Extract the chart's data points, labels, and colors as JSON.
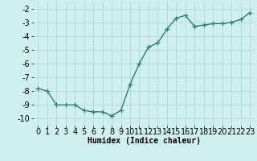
{
  "x": [
    0,
    1,
    2,
    3,
    4,
    5,
    6,
    7,
    8,
    9,
    10,
    11,
    12,
    13,
    14,
    15,
    16,
    17,
    18,
    19,
    20,
    21,
    22,
    23
  ],
  "y": [
    -7.8,
    -8.0,
    -9.0,
    -9.0,
    -9.0,
    -9.4,
    -9.5,
    -9.5,
    -9.8,
    -9.4,
    -7.5,
    -6.0,
    -4.8,
    -4.5,
    -3.5,
    -2.7,
    -2.5,
    -3.3,
    -3.2,
    -3.1,
    -3.1,
    -3.0,
    -2.8,
    -2.3
  ],
  "line_color": "#2e7d6e",
  "marker": "+",
  "markersize": 4,
  "linewidth": 1.0,
  "background_color": "#cff0ec",
  "grid_color": "#b0d8d2",
  "xlabel": "Humidex (Indice chaleur)",
  "xlabel_fontsize": 7,
  "tick_fontsize": 7,
  "ylim": [
    -10.5,
    -1.5
  ],
  "xlim": [
    -0.5,
    23.5
  ],
  "yticks": [
    -10,
    -9,
    -8,
    -7,
    -6,
    -5,
    -4,
    -3,
    -2
  ],
  "xticks": [
    0,
    1,
    2,
    3,
    4,
    5,
    6,
    7,
    8,
    9,
    10,
    11,
    12,
    13,
    14,
    15,
    16,
    17,
    18,
    19,
    20,
    21,
    22,
    23
  ]
}
